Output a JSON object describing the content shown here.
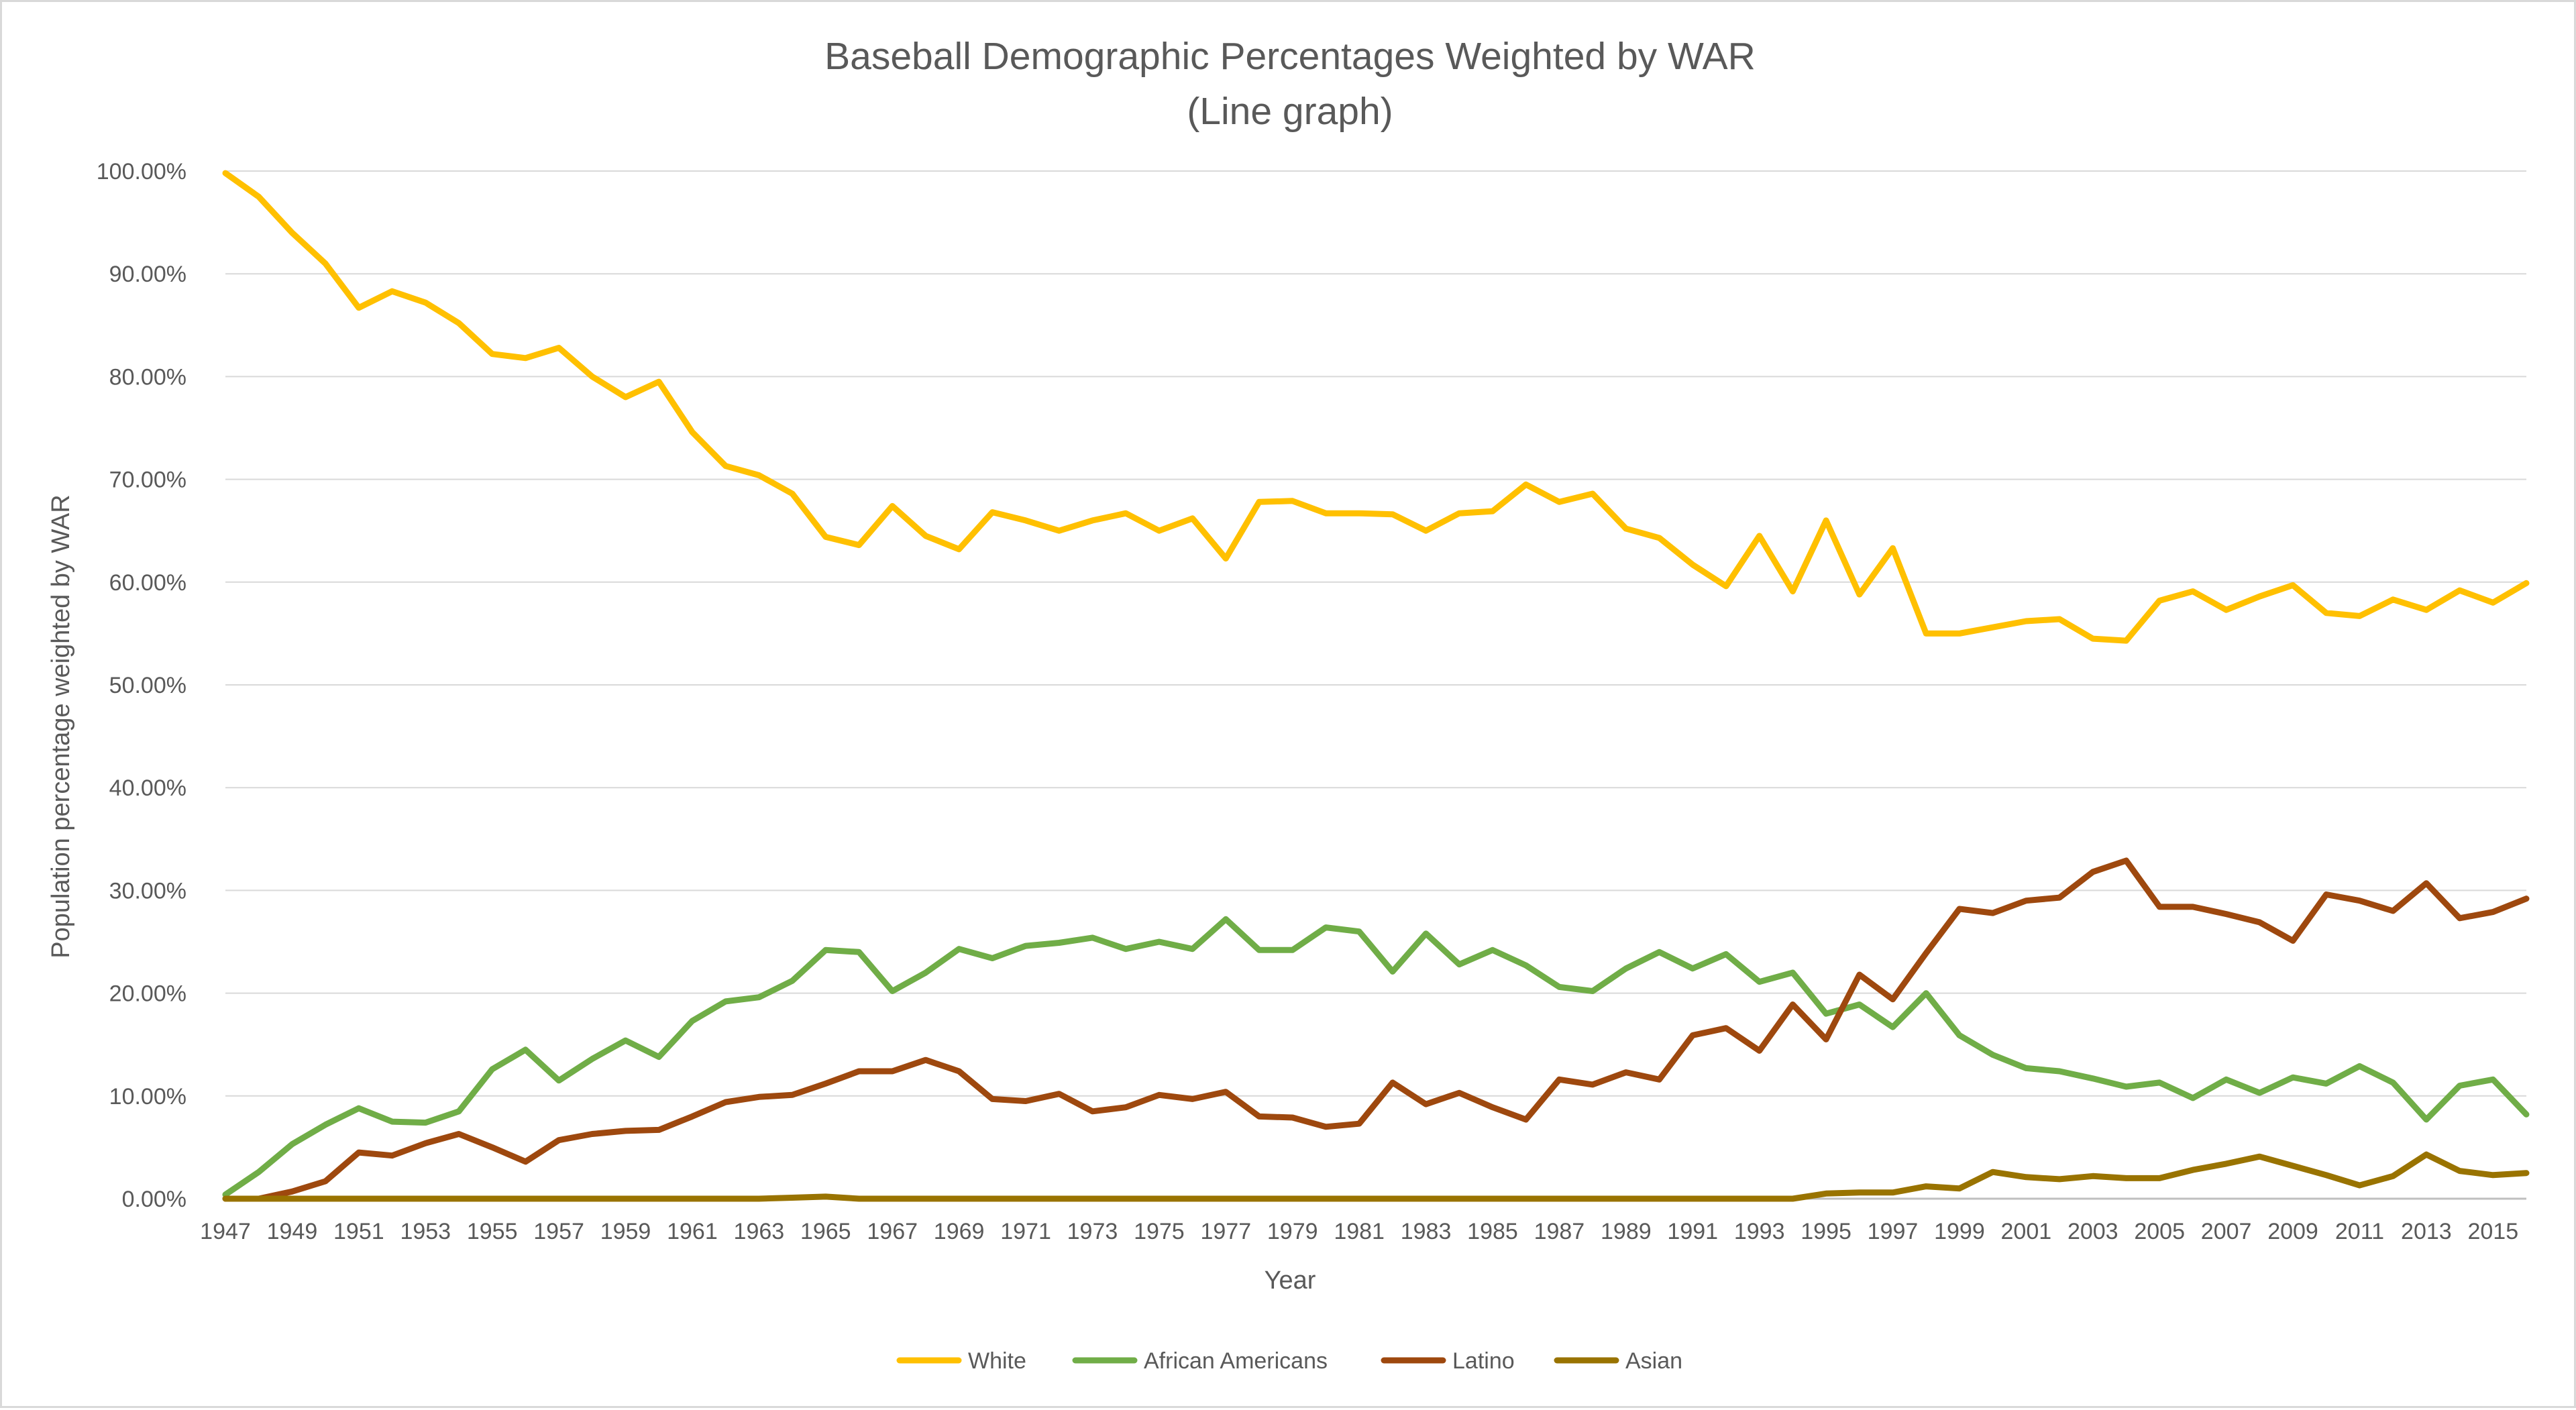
{
  "chart_data": {
    "type": "line",
    "title": "Baseball Demographic Percentages Weighted by WAR",
    "subtitle": "(Line graph)",
    "xlabel": "Year",
    "ylabel": "Population percentage weighted by WAR",
    "ylim": [
      0,
      100
    ],
    "y_ticks": [
      "0.00%",
      "10.00%",
      "20.00%",
      "30.00%",
      "40.00%",
      "50.00%",
      "60.00%",
      "70.00%",
      "80.00%",
      "90.00%",
      "100.00%"
    ],
    "x_tick_labels": [
      "1947",
      "1949",
      "1951",
      "1953",
      "1955",
      "1957",
      "1959",
      "1961",
      "1963",
      "1965",
      "1967",
      "1969",
      "1971",
      "1973",
      "1975",
      "1977",
      "1979",
      "1981",
      "1983",
      "1985",
      "1987",
      "1989",
      "1991",
      "1993",
      "1995",
      "1997",
      "1999",
      "2001",
      "2003",
      "2005",
      "2007",
      "2009",
      "2011",
      "2013",
      "2015"
    ],
    "grid": true,
    "legend_position": "bottom",
    "x": [
      1947,
      1948,
      1949,
      1950,
      1951,
      1952,
      1953,
      1954,
      1955,
      1956,
      1957,
      1958,
      1959,
      1960,
      1961,
      1962,
      1963,
      1964,
      1965,
      1966,
      1967,
      1968,
      1969,
      1970,
      1971,
      1972,
      1973,
      1974,
      1975,
      1976,
      1977,
      1978,
      1979,
      1980,
      1981,
      1982,
      1983,
      1984,
      1985,
      1986,
      1987,
      1988,
      1989,
      1990,
      1991,
      1992,
      1993,
      1994,
      1995,
      1996,
      1997,
      1998,
      1999,
      2000,
      2001,
      2002,
      2003,
      2004,
      2005,
      2006,
      2007,
      2008,
      2009,
      2010,
      2011,
      2012,
      2013,
      2014,
      2015,
      2016
    ],
    "series": [
      {
        "name": "White",
        "color": "#FFC000",
        "values": [
          99.8,
          97.5,
          94.0,
          91.0,
          86.7,
          88.3,
          87.2,
          85.2,
          82.2,
          81.8,
          82.8,
          80.0,
          78.0,
          79.5,
          74.6,
          71.3,
          70.4,
          68.6,
          64.4,
          63.6,
          67.4,
          64.5,
          63.2,
          66.8,
          66.0,
          65.0,
          66.0,
          66.7,
          65.0,
          66.2,
          62.3,
          67.8,
          67.9,
          66.7,
          66.7,
          66.6,
          65.0,
          66.7,
          66.9,
          69.5,
          67.8,
          68.6,
          65.2,
          64.3,
          61.7,
          59.6,
          64.5,
          59.1,
          66.0,
          58.8,
          63.3,
          55.0,
          55.0,
          55.6,
          56.2,
          56.4,
          54.5,
          54.3,
          58.2,
          59.1,
          57.3,
          58.6,
          59.7,
          57.0,
          56.7,
          58.3,
          57.3,
          59.2,
          58.0,
          59.9
        ]
      },
      {
        "name": "African Americans",
        "color": "#70AD47",
        "values": [
          0.4,
          2.6,
          5.3,
          7.2,
          8.8,
          7.5,
          7.4,
          8.5,
          12.6,
          14.5,
          11.5,
          13.6,
          15.4,
          13.8,
          17.3,
          19.2,
          19.6,
          21.2,
          24.2,
          24.0,
          20.2,
          22.0,
          24.3,
          23.4,
          24.6,
          24.9,
          25.4,
          24.3,
          25.0,
          24.3,
          27.2,
          24.2,
          24.2,
          26.4,
          26.0,
          22.1,
          25.8,
          22.8,
          24.2,
          22.7,
          20.6,
          20.2,
          22.4,
          24.0,
          22.4,
          23.8,
          21.1,
          22.0,
          18.0,
          18.9,
          16.7,
          20.0,
          15.9,
          14.0,
          12.7,
          12.4,
          11.7,
          10.9,
          11.3,
          9.8,
          11.6,
          10.3,
          11.8,
          11.2,
          12.9,
          11.3,
          7.7,
          11.0,
          11.6,
          8.2
        ]
      },
      {
        "name": "Latino",
        "color": "#9E480E",
        "values": [
          0.0,
          0.0,
          0.7,
          1.7,
          4.5,
          4.2,
          5.4,
          6.3,
          5.0,
          3.6,
          5.7,
          6.3,
          6.6,
          6.7,
          8.0,
          9.4,
          9.9,
          10.1,
          11.2,
          12.4,
          12.4,
          13.5,
          12.4,
          9.7,
          9.5,
          10.2,
          8.5,
          8.9,
          10.1,
          9.7,
          10.4,
          8.0,
          7.9,
          7.0,
          7.3,
          11.3,
          9.2,
          10.3,
          8.9,
          7.7,
          11.6,
          11.1,
          12.3,
          11.6,
          15.9,
          16.6,
          14.4,
          18.9,
          15.5,
          21.8,
          19.4,
          23.9,
          28.2,
          27.8,
          29.0,
          29.3,
          31.8,
          32.9,
          28.4,
          28.4,
          27.7,
          26.9,
          25.1,
          29.6,
          29.0,
          28.0,
          30.7,
          27.3,
          27.9,
          29.2
        ]
      },
      {
        "name": "Asian",
        "color": "#997300",
        "values": [
          0.0,
          0.0,
          0.0,
          0.0,
          0.0,
          0.0,
          0.0,
          0.0,
          0.0,
          0.0,
          0.0,
          0.0,
          0.0,
          0.0,
          0.0,
          0.0,
          0.0,
          0.1,
          0.2,
          0.0,
          0.0,
          0.0,
          0.0,
          0.0,
          0.0,
          0.0,
          0.0,
          0.0,
          0.0,
          0.0,
          0.0,
          0.0,
          0.0,
          0.0,
          0.0,
          0.0,
          0.0,
          0.0,
          0.0,
          0.0,
          0.0,
          0.0,
          0.0,
          0.0,
          0.0,
          0.0,
          0.0,
          0.0,
          0.5,
          0.6,
          0.6,
          1.2,
          1.0,
          2.6,
          2.1,
          1.9,
          2.2,
          2.0,
          2.0,
          2.8,
          3.4,
          4.1,
          3.2,
          2.3,
          1.3,
          2.2,
          4.3,
          2.7,
          2.3,
          2.5
        ]
      }
    ]
  }
}
